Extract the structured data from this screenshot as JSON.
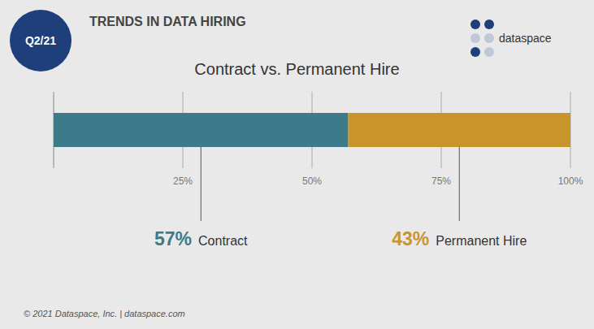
{
  "chart_data": {
    "type": "bar",
    "orientation": "horizontal",
    "stacked": true,
    "title": "Contract vs. Permanent Hire",
    "subtitle": "TRENDS IN DATA HIRING",
    "annotations": [
      "Q2/21",
      "dataspace",
      "© 2021 Dataspace, Inc.  |  dataspace.com"
    ],
    "categories": [
      null
    ],
    "series": [
      {
        "name": "Contract",
        "color": "#3d7a8a",
        "values": [
          57
        ],
        "value_labels": [
          "57%"
        ]
      },
      {
        "name": "Permanent Hire",
        "color": "#c9952a",
        "values": [
          43
        ],
        "value_labels": [
          "43%"
        ]
      }
    ],
    "data_labels": true,
    "xlim": [
      0,
      100
    ],
    "xticks": [
      {
        "value": 25,
        "label": "25%"
      },
      {
        "value": 50,
        "label": "50%"
      },
      {
        "value": 75,
        "label": "75%"
      },
      {
        "value": 100,
        "label": "100%"
      }
    ],
    "grid": true
  }
}
